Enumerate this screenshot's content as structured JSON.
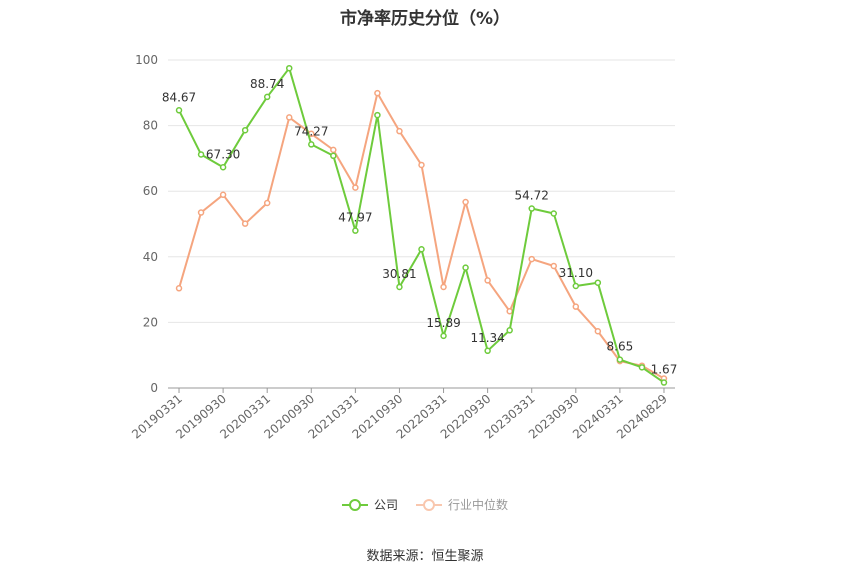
{
  "title": "市净率历史分位（%）",
  "source": "数据来源：恒生聚源",
  "chart_data": {
    "type": "line",
    "ylim": [
      0,
      100
    ],
    "yticks": [
      0,
      20,
      40,
      60,
      80,
      100
    ],
    "x_tick_labels": [
      "20190331",
      "20190930",
      "20200331",
      "20200930",
      "20210331",
      "20210930",
      "20220331",
      "20220930",
      "20230331",
      "20230930",
      "20240331",
      "20240829"
    ],
    "x": [
      "20190331",
      "20190630",
      "20190930",
      "20191231",
      "20200331",
      "20200630",
      "20200930",
      "20201231",
      "20210331",
      "20210630",
      "20210930",
      "20211231",
      "20220331",
      "20220630",
      "20220930",
      "20221231",
      "20230331",
      "20230630",
      "20230930",
      "20231231",
      "20240331",
      "20240630",
      "20240829"
    ],
    "grid": true,
    "legend_position": "bottom",
    "series": [
      {
        "name": "公司",
        "color": "#6ECB3C",
        "values": [
          84.67,
          71.2,
          67.3,
          78.6,
          88.74,
          97.5,
          74.27,
          70.8,
          47.97,
          83.2,
          30.81,
          42.3,
          15.89,
          36.7,
          11.34,
          17.6,
          54.72,
          53.2,
          31.1,
          32.1,
          8.65,
          6.3,
          1.67
        ],
        "labels": {
          "0": "84.67",
          "2": "67.30",
          "4": "88.74",
          "6": "74.27",
          "8": "47.97",
          "10": "30.81",
          "12": "15.89",
          "14": "11.34",
          "16": "54.72",
          "18": "31.10",
          "20": "8.65",
          "22": "1.67"
        }
      },
      {
        "name": "行业中位数",
        "color": "#F5A57F",
        "values": [
          30.4,
          53.5,
          58.9,
          50.1,
          56.4,
          82.5,
          77.5,
          72.6,
          61.1,
          89.9,
          78.3,
          68.0,
          30.8,
          56.7,
          32.8,
          23.4,
          39.3,
          37.2,
          24.8,
          17.3,
          8.2,
          6.8,
          2.9
        ]
      }
    ]
  }
}
